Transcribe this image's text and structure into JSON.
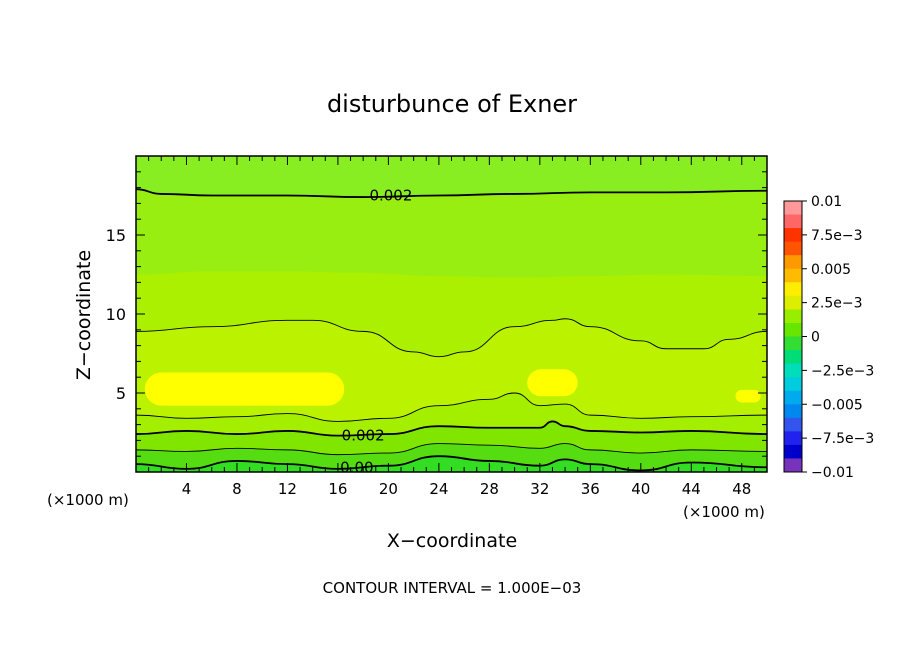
{
  "chart_data": {
    "type": "contour",
    "title": "disturbunce of Exner",
    "xlabel": "X−coordinate",
    "ylabel": "Z−coordinate",
    "x_unit_left": "(×1000 m)",
    "x_unit_right": "(×1000 m)",
    "footer": "CONTOUR INTERVAL = 1.000E−03",
    "xlim": [
      0,
      50
    ],
    "ylim": [
      0,
      20
    ],
    "x_ticks": [
      4,
      8,
      12,
      16,
      20,
      24,
      28,
      32,
      36,
      40,
      44,
      48
    ],
    "x_tick_labels": [
      "4",
      "8",
      "12",
      "16",
      "20",
      "24",
      "28",
      "32",
      "36",
      "40",
      "44",
      "48"
    ],
    "y_ticks": [
      5,
      10,
      15
    ],
    "y_tick_labels": [
      "5",
      "10",
      "15"
    ],
    "contour_interval": 0.001,
    "contour_labels": [
      {
        "text": "0.002",
        "x": 20.2,
        "z": 17.5
      },
      {
        "text": "0.002",
        "x": 18.0,
        "z": 2.3
      },
      {
        "text": "0.00",
        "x": 17.5,
        "z": 0.3
      }
    ],
    "bands": [
      {
        "name": "top",
        "upper": [
          [
            0,
            20
          ],
          [
            50,
            20
          ]
        ],
        "color": "#88ee22"
      },
      {
        "name": "upper-mid",
        "upper": [
          [
            0,
            17.9
          ],
          [
            2,
            17.6
          ],
          [
            6,
            17.5
          ],
          [
            12,
            17.5
          ],
          [
            18,
            17.4
          ],
          [
            24,
            17.5
          ],
          [
            30,
            17.6
          ],
          [
            36,
            17.7
          ],
          [
            42,
            17.7
          ],
          [
            50,
            17.8
          ]
        ],
        "color": "#99ee11"
      },
      {
        "name": "mid-upper",
        "upper": [
          [
            0,
            12.5
          ],
          [
            6,
            12.7
          ],
          [
            12,
            12.7
          ],
          [
            18,
            12.6
          ],
          [
            24,
            12.4
          ],
          [
            30,
            12.3
          ],
          [
            36,
            12.4
          ],
          [
            42,
            12.5
          ],
          [
            50,
            12.4
          ]
        ],
        "color": "#aaf000"
      },
      {
        "name": "mid",
        "upper": [
          [
            0,
            8.9
          ],
          [
            6,
            9.2
          ],
          [
            12,
            9.6
          ],
          [
            14,
            9.6
          ],
          [
            18,
            8.9
          ],
          [
            22,
            7.6
          ],
          [
            24,
            7.3
          ],
          [
            26,
            7.6
          ],
          [
            30,
            9.2
          ],
          [
            33,
            9.6
          ],
          [
            34,
            9.7
          ],
          [
            36,
            9.2
          ],
          [
            40,
            8.3
          ],
          [
            42,
            7.8
          ],
          [
            45,
            7.8
          ],
          [
            47,
            8.4
          ],
          [
            50,
            8.9
          ]
        ],
        "color": "#bbf200"
      },
      {
        "name": "lower-mid",
        "upper": [
          [
            0,
            3.6
          ],
          [
            4,
            3.4
          ],
          [
            8,
            3.5
          ],
          [
            12,
            3.7
          ],
          [
            16,
            3.2
          ],
          [
            20,
            3.4
          ],
          [
            24,
            4.2
          ],
          [
            28,
            4.6
          ],
          [
            30,
            5.0
          ],
          [
            32,
            4.2
          ],
          [
            34,
            4.3
          ],
          [
            36,
            3.6
          ],
          [
            40,
            3.4
          ],
          [
            44,
            3.5
          ],
          [
            50,
            3.6
          ]
        ],
        "color": "#a4ee00"
      },
      {
        "name": "low",
        "upper": [
          [
            0,
            2.4
          ],
          [
            4,
            2.6
          ],
          [
            8,
            2.4
          ],
          [
            12,
            2.6
          ],
          [
            16,
            2.3
          ],
          [
            20,
            2.4
          ],
          [
            24,
            2.9
          ],
          [
            28,
            2.8
          ],
          [
            32,
            2.8
          ],
          [
            33,
            3.2
          ],
          [
            34,
            2.9
          ],
          [
            36,
            2.6
          ],
          [
            40,
            2.5
          ],
          [
            44,
            2.6
          ],
          [
            50,
            2.4
          ]
        ],
        "color": "#80e600"
      },
      {
        "name": "very-low",
        "upper": [
          [
            0,
            1.4
          ],
          [
            4,
            1.3
          ],
          [
            8,
            1.5
          ],
          [
            12,
            1.4
          ],
          [
            16,
            1.1
          ],
          [
            20,
            1.2
          ],
          [
            24,
            1.8
          ],
          [
            28,
            1.7
          ],
          [
            32,
            1.5
          ],
          [
            34,
            1.8
          ],
          [
            36,
            1.4
          ],
          [
            40,
            1.2
          ],
          [
            44,
            1.4
          ],
          [
            50,
            1.3
          ]
        ],
        "color": "#55dd11"
      },
      {
        "name": "bottom",
        "upper": [
          [
            0,
            0.5
          ],
          [
            4,
            0.2
          ],
          [
            8,
            0.7
          ],
          [
            12,
            0.5
          ],
          [
            16,
            0.2
          ],
          [
            20,
            0.4
          ],
          [
            24,
            1.0
          ],
          [
            28,
            0.7
          ],
          [
            32,
            0.4
          ],
          [
            34,
            0.8
          ],
          [
            36,
            0.5
          ],
          [
            40,
            0.1
          ],
          [
            44,
            0.6
          ],
          [
            50,
            0.3
          ]
        ],
        "color": "#33dd22"
      }
    ],
    "yellow_patches": [
      {
        "x": [
          0.7,
          16.5
        ],
        "z": [
          4.2,
          6.3
        ]
      },
      {
        "x": [
          31,
          35
        ],
        "z": [
          4.8,
          6.5
        ]
      },
      {
        "x": [
          47.5,
          49.5
        ],
        "z": [
          4.4,
          5.2
        ]
      }
    ],
    "colorbar": {
      "labels": [
        "0.01",
        "7.5e−3",
        "0.005",
        "2.5e−3",
        "0",
        "−2.5e−3",
        "−0.005",
        "−7.5e−3",
        "−0.01"
      ],
      "colors_top_to_bottom": [
        "#ff9999",
        "#ff6666",
        "#ff3300",
        "#ff5500",
        "#ff9900",
        "#ffbb00",
        "#ffee00",
        "#ddee00",
        "#99ee00",
        "#66e600",
        "#33dd33",
        "#00dd77",
        "#00ddbb",
        "#00ccdd",
        "#00aaee",
        "#0088ee",
        "#3355ee",
        "#2222ee",
        "#0000cc",
        "#7733bb"
      ]
    }
  }
}
